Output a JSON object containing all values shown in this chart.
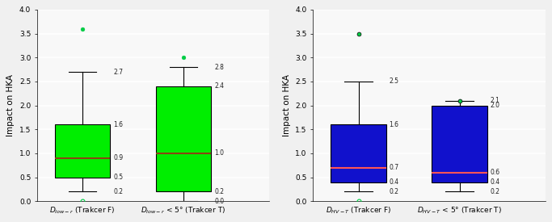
{
  "left_plot": {
    "box1": {
      "whisker_low": 0.2,
      "q1": 0.5,
      "median": 0.9,
      "q3": 1.6,
      "whisker_high": 2.7,
      "flier_low": 0.0,
      "flier_high": 3.6,
      "label": "$D_{low-r}$ (Trakcer F)",
      "color": "#00ee00",
      "median_color": "#8B4513",
      "annotations": {
        "whisker_high": "2.7",
        "q3": "1.6",
        "median": "0.9",
        "q1": "0.5",
        "whisker_low": "0.2"
      }
    },
    "box2": {
      "whisker_low": 0.0,
      "q1": 0.2,
      "median": 1.0,
      "q3": 2.4,
      "whisker_high": 2.8,
      "flier_low": null,
      "flier_high": 3.0,
      "label": "$D_{low-r}$ < 5° (Trakcer T)",
      "color": "#00ee00",
      "median_color": "#8B4513",
      "annotations": {
        "whisker_high": "2.8",
        "q3": "2.4",
        "median": "1.0",
        "q1": "0.2",
        "whisker_low": "0.0"
      }
    },
    "ylabel": "Impact on HKA",
    "ylim": [
      0.0,
      4.0
    ],
    "yticks": [
      0.0,
      0.5,
      1.0,
      1.5,
      2.0,
      2.5,
      3.0,
      3.5,
      4.0
    ]
  },
  "right_plot": {
    "box1": {
      "whisker_low": 0.2,
      "q1": 0.4,
      "median": 0.7,
      "q3": 1.6,
      "whisker_high": 2.5,
      "flier_low": 0.0,
      "flier_high": 3.5,
      "label": "$D_{HV-T}$ (Trakcer F)",
      "color": "#1111cc",
      "median_color": "#ff5555",
      "annotations": {
        "whisker_high": "2.5",
        "q3": "1.6",
        "median": "0.7",
        "q1": "0.4",
        "whisker_low": "0.2"
      }
    },
    "box2": {
      "whisker_low": 0.2,
      "q1": 0.4,
      "median": 0.6,
      "q3": 2.0,
      "whisker_high": 2.1,
      "flier_low": null,
      "flier_high": 2.1,
      "label": "$D_{HV-T}$ < 5° (Trakcer T)",
      "color": "#1111cc",
      "median_color": "#ff5555",
      "annotations": {
        "whisker_high": "2.1",
        "q3": "2.0",
        "median": "0.6",
        "q1": "0.4",
        "whisker_low": "0.2"
      }
    },
    "ylabel": "Impact on HKA",
    "ylim": [
      0.0,
      4.0
    ],
    "yticks": [
      0.0,
      0.5,
      1.0,
      1.5,
      2.0,
      2.5,
      3.0,
      3.5,
      4.0
    ]
  },
  "flier_color_green": "#00cc44",
  "flier_open_color": "#88dd88",
  "background_color": "#f0f0f0",
  "plot_bg_color": "#f8f8f8",
  "grid_color": "#ffffff",
  "annotation_fontsize": 5.5,
  "label_fontsize": 6.5,
  "ylabel_fontsize": 7.5,
  "tick_fontsize": 6.5
}
